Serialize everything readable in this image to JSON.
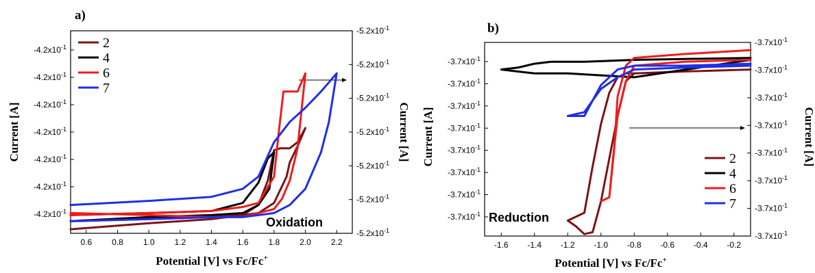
{
  "chart_data": [
    {
      "panel_label": "a)",
      "type": "line",
      "xlabel": "Potential [V] vs Fc/Fc",
      "xlabel_sup": "+",
      "ylabel_left": "Current [A]",
      "ylabel_right": "Current [A]",
      "xlim": [
        0.5,
        2.3
      ],
      "x_ticks": [
        "0.6",
        "0.8",
        "1.0",
        "1.2",
        "1.4",
        "1.6",
        "1.8",
        "2.0",
        "2.2"
      ],
      "left_tick_labels": [
        "-4.2x10",
        "-4.2x10",
        "-4.2x10",
        "-4.2x10",
        "-4.2x10",
        "-4.2x10",
        "-4.2x10"
      ],
      "right_tick_labels": [
        "-5.2x10",
        "-5.2x10",
        "-5.2x10",
        "-5.2x10",
        "-5.2x10",
        "-5.2x10",
        "-5.2x10"
      ],
      "tick_exponent": "-1",
      "annotation": "Oxidation",
      "legend_placement": "top-left",
      "series": [
        {
          "name": "2",
          "color": "#7a1416",
          "x": [
            0.5,
            1.0,
            1.4,
            1.6,
            1.7,
            1.76,
            1.8,
            1.84,
            1.9,
            1.95,
            2.0,
            2.0,
            1.95,
            1.9,
            1.88,
            1.8,
            1.7,
            1.6,
            1.4,
            1.0,
            0.5
          ],
          "y": [
            0.02,
            0.05,
            0.07,
            0.09,
            0.14,
            0.26,
            0.41,
            0.42,
            0.42,
            0.45,
            0.52,
            0.52,
            0.43,
            0.35,
            0.28,
            0.15,
            0.1,
            0.09,
            0.08,
            0.07,
            0.06
          ]
        },
        {
          "name": "4",
          "color": "#000000",
          "x": [
            0.5,
            1.0,
            1.4,
            1.6,
            1.7,
            1.76,
            1.8,
            1.8,
            1.77,
            1.7,
            1.6,
            1.4,
            1.0,
            0.5
          ],
          "y": [
            0.09,
            0.1,
            0.11,
            0.15,
            0.25,
            0.37,
            0.4,
            0.4,
            0.22,
            0.14,
            0.1,
            0.09,
            0.08,
            0.06
          ]
        },
        {
          "name": "6",
          "color": "#ee1c1c",
          "x": [
            0.5,
            1.0,
            1.4,
            1.6,
            1.7,
            1.8,
            1.83,
            1.86,
            1.9,
            1.95,
            2.0,
            2.0,
            1.95,
            1.9,
            1.85,
            1.8,
            1.6,
            1.4,
            1.0,
            0.5
          ],
          "y": [
            0.09,
            0.1,
            0.11,
            0.13,
            0.15,
            0.28,
            0.5,
            0.7,
            0.7,
            0.7,
            0.79,
            0.79,
            0.42,
            0.26,
            0.17,
            0.12,
            0.08,
            0.08,
            0.09,
            0.1
          ]
        },
        {
          "name": "7",
          "color": "#1f2fe5",
          "x": [
            0.5,
            1.0,
            1.4,
            1.6,
            1.7,
            1.8,
            1.9,
            2.0,
            2.1,
            2.2,
            2.2,
            2.15,
            2.1,
            2.0,
            1.9,
            1.8,
            1.6,
            1.4,
            1.0,
            0.5
          ],
          "y": [
            0.14,
            0.16,
            0.18,
            0.22,
            0.28,
            0.45,
            0.55,
            0.62,
            0.7,
            0.79,
            0.79,
            0.55,
            0.4,
            0.22,
            0.14,
            0.1,
            0.08,
            0.08,
            0.07,
            0.06
          ]
        }
      ]
    },
    {
      "panel_label": "b)",
      "type": "line",
      "xlabel": "Potential [V] vs Fc/Fc",
      "xlabel_sup": "+",
      "ylabel_left": "Current [A]",
      "ylabel_right": "Current [A]",
      "xlim": [
        -1.7,
        -0.1
      ],
      "x_ticks": [
        "-1.6",
        "-1.4",
        "-1.2",
        "-1.0",
        "-0.8",
        "-0.6",
        "-0.4",
        "-0.2"
      ],
      "left_tick_labels": [
        "-3.7x10",
        "-3.7x10",
        "-3.7x10",
        "-3.7x10",
        "-3.7x10",
        "-3.7x10",
        "-3.7x10",
        "-3.7x10"
      ],
      "right_tick_labels": [
        "-3.7x10",
        "-3.7x10",
        "-3.7x10",
        "-3.7x10",
        "-3.7x10",
        "-3.7x10",
        "-3.7x10",
        "-3.7x10"
      ],
      "tick_exponent": "-1",
      "annotation": "Reduction",
      "legend_placement": "bottom-right",
      "series": [
        {
          "name": "2",
          "color": "#7a1416",
          "x": [
            -0.1,
            -0.5,
            -0.8,
            -0.85,
            -0.9,
            -0.95,
            -1.0,
            -1.05,
            -1.1,
            -1.2,
            -1.2,
            -1.15,
            -1.1,
            -1.05,
            -1.0,
            -0.95,
            -0.9,
            -0.85,
            -0.8,
            -0.5,
            -0.1
          ],
          "y": [
            0.86,
            0.85,
            0.84,
            0.84,
            0.82,
            0.74,
            0.58,
            0.36,
            0.12,
            0.08,
            0.08,
            0.05,
            0.01,
            0.02,
            0.18,
            0.4,
            0.62,
            0.8,
            0.84,
            0.85,
            0.86
          ]
        },
        {
          "name": "4",
          "color": "#000000",
          "x": [
            -0.1,
            -0.8,
            -1.1,
            -1.2,
            -1.3,
            -1.4,
            -1.5,
            -1.6,
            -1.6,
            -1.5,
            -1.4,
            -1.3,
            -1.2,
            -1.0,
            -0.8,
            -0.1
          ],
          "y": [
            0.92,
            0.91,
            0.9,
            0.9,
            0.9,
            0.89,
            0.87,
            0.86,
            0.86,
            0.85,
            0.84,
            0.84,
            0.84,
            0.83,
            0.82,
            0.91
          ]
        },
        {
          "name": "6",
          "color": "#ee1c1c",
          "x": [
            -0.1,
            -0.5,
            -0.8,
            -0.85,
            -0.9,
            -0.92,
            -0.95,
            -1.0,
            -1.0,
            -0.95,
            -0.93,
            -0.9,
            -0.85,
            -0.8,
            -0.5,
            -0.1
          ],
          "y": [
            0.96,
            0.94,
            0.92,
            0.88,
            0.72,
            0.45,
            0.2,
            0.18,
            0.18,
            0.2,
            0.38,
            0.62,
            0.8,
            0.88,
            0.9,
            0.91
          ]
        },
        {
          "name": "7",
          "color": "#1f2fe5",
          "x": [
            -0.1,
            -0.5,
            -0.8,
            -0.9,
            -1.0,
            -1.05,
            -1.1,
            -1.2,
            -1.2,
            -1.1,
            -1.05,
            -1.0,
            -0.9,
            -0.8,
            -0.5,
            -0.1
          ],
          "y": [
            0.89,
            0.88,
            0.88,
            0.86,
            0.78,
            0.7,
            0.62,
            0.62,
            0.62,
            0.64,
            0.7,
            0.76,
            0.82,
            0.86,
            0.87,
            0.88
          ]
        }
      ]
    }
  ]
}
